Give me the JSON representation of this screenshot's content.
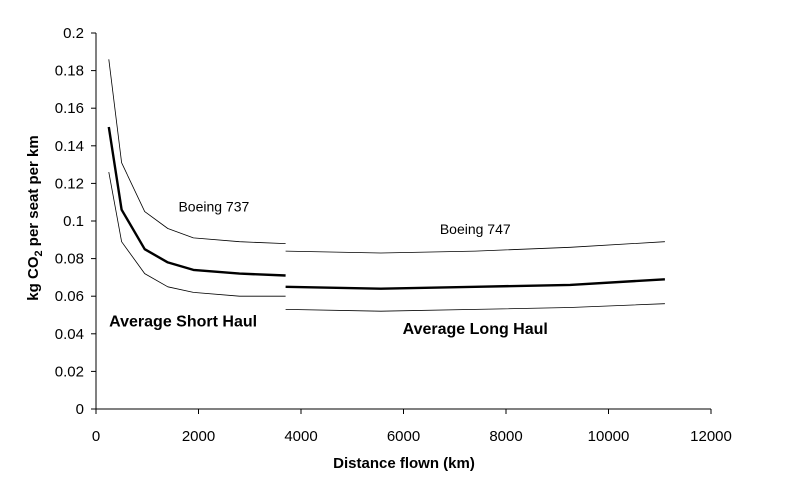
{
  "chart_data": {
    "type": "line",
    "title": "",
    "xlabel": "Distance flown (km)",
    "ylabel_parts": [
      "kg CO",
      "2",
      " per seat per km"
    ],
    "xlim": [
      0,
      12000
    ],
    "ylim": [
      0,
      0.2
    ],
    "xticks": [
      0,
      2000,
      4000,
      6000,
      8000,
      10000,
      12000
    ],
    "xtick_labels": [
      "0",
      "2000",
      "4000",
      "6000",
      "8000",
      "10000",
      "12000"
    ],
    "yticks": [
      0,
      0.02,
      0.04,
      0.06,
      0.08,
      0.1,
      0.12,
      0.14,
      0.16,
      0.18,
      0.2
    ],
    "ytick_labels": [
      "0",
      "0.02",
      "0.04",
      "0.06",
      "0.08",
      "0.1",
      "0.12",
      "0.14",
      "0.16",
      "0.18",
      "0.2"
    ],
    "grid": false,
    "legend": "none",
    "series": [
      {
        "group": "short-upper",
        "style": "thin",
        "x": [
          250,
          500,
          950,
          1400,
          1900,
          2800,
          3700
        ],
        "y": [
          0.186,
          0.131,
          0.105,
          0.096,
          0.091,
          0.089,
          0.088
        ]
      },
      {
        "group": "short-average",
        "style": "thick",
        "x": [
          250,
          500,
          950,
          1400,
          1900,
          2800,
          3700
        ],
        "y": [
          0.15,
          0.106,
          0.085,
          0.078,
          0.074,
          0.072,
          0.071
        ]
      },
      {
        "group": "short-lower",
        "style": "thin",
        "x": [
          250,
          500,
          950,
          1400,
          1900,
          2800,
          3700
        ],
        "y": [
          0.126,
          0.089,
          0.072,
          0.065,
          0.062,
          0.06,
          0.06
        ]
      },
      {
        "group": "long-upper",
        "style": "thin",
        "x": [
          3700,
          5550,
          7400,
          9250,
          11100
        ],
        "y": [
          0.084,
          0.083,
          0.084,
          0.086,
          0.089
        ]
      },
      {
        "group": "long-average",
        "style": "thick",
        "x": [
          3700,
          5550,
          7400,
          9250,
          11100
        ],
        "y": [
          0.065,
          0.064,
          0.065,
          0.066,
          0.069
        ]
      },
      {
        "group": "long-lower",
        "style": "thin",
        "x": [
          3700,
          5550,
          7400,
          9250,
          11100
        ],
        "y": [
          0.053,
          0.052,
          0.053,
          0.054,
          0.056
        ]
      }
    ],
    "annotations": [
      {
        "text": "Boeing 737",
        "x": 2300,
        "y": 0.105,
        "style": "normal"
      },
      {
        "text": "Boeing 747",
        "x": 7400,
        "y": 0.093,
        "style": "normal"
      },
      {
        "text": "Average Short Haul",
        "x": 1700,
        "y": 0.044,
        "style": "bold"
      },
      {
        "text": "Average Long Haul",
        "x": 7400,
        "y": 0.04,
        "style": "bold"
      }
    ]
  }
}
